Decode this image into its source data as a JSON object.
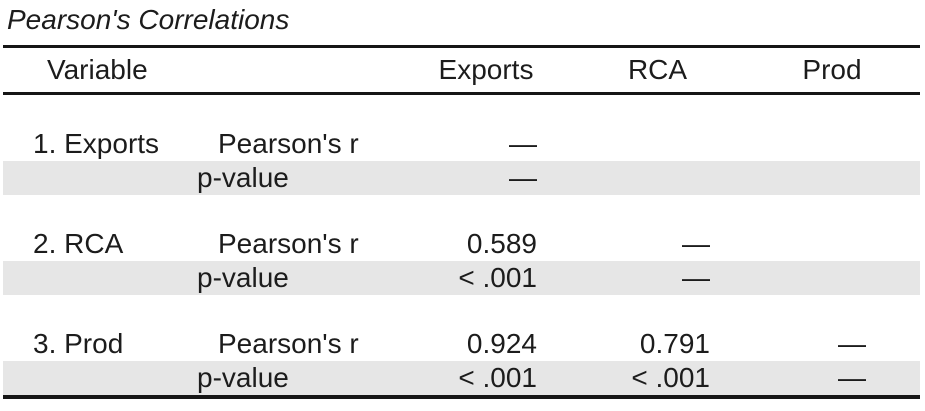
{
  "title": "Pearson's Correlations",
  "colors": {
    "background": "#ffffff",
    "text": "#1c1c1c",
    "rule": "#161616",
    "stripe": "#e6e6e6"
  },
  "table": {
    "headers": {
      "variable": "Variable",
      "exports": "Exports",
      "rca": "RCA",
      "prod": "Prod"
    },
    "groups": [
      {
        "variable": "1. Exports",
        "rows": [
          {
            "label": "Pearson's r",
            "exports": "—",
            "rca": "",
            "prod": ""
          },
          {
            "label": "p-value",
            "exports": "—",
            "rca": "",
            "prod": ""
          }
        ]
      },
      {
        "variable": "2. RCA",
        "rows": [
          {
            "label": "Pearson's r",
            "exports": "0.589",
            "rca": "—",
            "prod": ""
          },
          {
            "label": "p-value",
            "exports": "< .001",
            "rca": "—",
            "prod": ""
          }
        ]
      },
      {
        "variable": "3. Prod",
        "rows": [
          {
            "label": "Pearson's r",
            "exports": "0.924",
            "rca": "0.791",
            "prod": "—"
          },
          {
            "label": "p-value",
            "exports": "< .001",
            "rca": "< .001",
            "prod": "—"
          }
        ]
      }
    ]
  }
}
